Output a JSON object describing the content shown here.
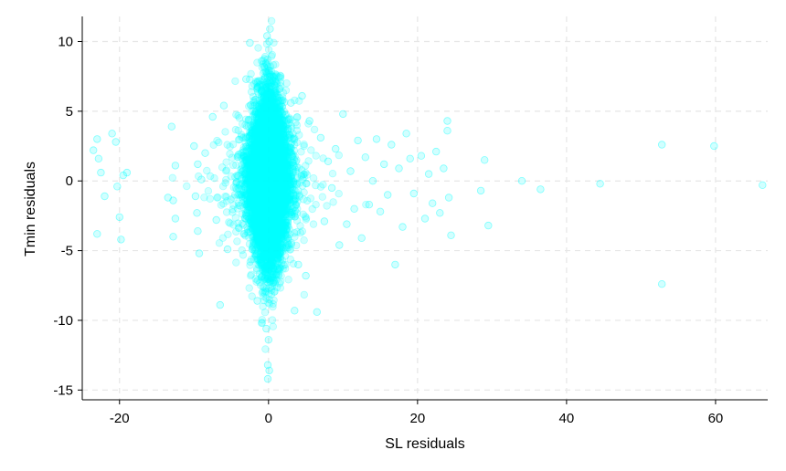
{
  "chart_data": {
    "type": "scatter",
    "title": "",
    "xlabel": "SL residuals",
    "ylabel": "Tmin residuals",
    "xlim": [
      -25,
      67
    ],
    "ylim": [
      -15.7,
      11.8
    ],
    "x_ticks": [
      -20,
      0,
      20,
      40,
      60
    ],
    "y_ticks": [
      10,
      5,
      0,
      -5,
      -10,
      -15
    ],
    "x_tick_labels": [
      "-20",
      "0",
      "20",
      "40",
      "60"
    ],
    "y_tick_labels": [
      "10",
      "5",
      "0",
      "-5",
      "-10",
      "-15"
    ],
    "grid": true,
    "marker_color": "#00ffff",
    "marker_opacity": 0.18,
    "core_cluster": {
      "description_fields_only": true,
      "count": 7000,
      "x_center": 0.0,
      "y_center": 0.0,
      "x_sd": 1.1,
      "y_sd": 3.0
    },
    "points": [
      {
        "x": -23.5,
        "y": 2.2
      },
      {
        "x": -23.0,
        "y": 3.0
      },
      {
        "x": -22.8,
        "y": 1.6
      },
      {
        "x": -22.5,
        "y": 0.6
      },
      {
        "x": -22.0,
        "y": -1.1
      },
      {
        "x": -23.0,
        "y": -3.8
      },
      {
        "x": -21.0,
        "y": 3.4
      },
      {
        "x": -20.5,
        "y": 2.8
      },
      {
        "x": -20.3,
        "y": -0.4
      },
      {
        "x": -20.0,
        "y": -2.6
      },
      {
        "x": -19.5,
        "y": 0.4
      },
      {
        "x": -19.8,
        "y": -4.2
      },
      {
        "x": -19.0,
        "y": 0.6
      },
      {
        "x": -13.0,
        "y": 3.9
      },
      {
        "x": -13.5,
        "y": -1.2
      },
      {
        "x": -12.5,
        "y": 1.1
      },
      {
        "x": -12.8,
        "y": -1.4
      },
      {
        "x": -12.5,
        "y": -2.7
      },
      {
        "x": -12.8,
        "y": -4.0
      },
      {
        "x": -10.0,
        "y": 2.5
      },
      {
        "x": -9.5,
        "y": 1.2
      },
      {
        "x": -9.8,
        "y": -1.1
      },
      {
        "x": -9.6,
        "y": -2.3
      },
      {
        "x": -9.5,
        "y": -3.6
      },
      {
        "x": -9.3,
        "y": -5.2
      },
      {
        "x": -9.0,
        "y": 0.1
      },
      {
        "x": -8.5,
        "y": 2.0
      },
      {
        "x": -7.5,
        "y": 4.6
      },
      {
        "x": -7.0,
        "y": -2.8
      },
      {
        "x": -6.5,
        "y": -8.9
      },
      {
        "x": -6.0,
        "y": 5.4
      },
      {
        "x": -5.5,
        "y": -4.9
      },
      {
        "x": -3.0,
        "y": 7.3
      },
      {
        "x": -2.5,
        "y": 9.9
      },
      {
        "x": -1.5,
        "y": -8.6
      },
      {
        "x": 0.2,
        "y": 10.9
      },
      {
        "x": -0.2,
        "y": 10.4
      },
      {
        "x": 0.1,
        "y": 10.0
      },
      {
        "x": -0.1,
        "y": -13.2
      },
      {
        "x": 0.1,
        "y": -13.6
      },
      {
        "x": -0.1,
        "y": -14.2
      },
      {
        "x": 0.0,
        "y": -11.4
      },
      {
        "x": -0.3,
        "y": -10.6
      },
      {
        "x": 3.0,
        "y": 5.6
      },
      {
        "x": 3.5,
        "y": -9.3
      },
      {
        "x": 4.0,
        "y": -6.0
      },
      {
        "x": 4.5,
        "y": 6.1
      },
      {
        "x": 5.0,
        "y": -6.8
      },
      {
        "x": 5.5,
        "y": 4.3
      },
      {
        "x": 6.5,
        "y": -9.4
      },
      {
        "x": 7.0,
        "y": 3.1
      },
      {
        "x": 7.5,
        "y": -2.9
      },
      {
        "x": 8.0,
        "y": 1.4
      },
      {
        "x": 8.5,
        "y": -0.5
      },
      {
        "x": 9.0,
        "y": 2.3
      },
      {
        "x": 9.5,
        "y": -4.6
      },
      {
        "x": 10.0,
        "y": 4.8
      },
      {
        "x": 10.5,
        "y": -3.1
      },
      {
        "x": 11.0,
        "y": 0.7
      },
      {
        "x": 11.5,
        "y": -2.0
      },
      {
        "x": 12.0,
        "y": 2.9
      },
      {
        "x": 12.5,
        "y": -4.1
      },
      {
        "x": 13.0,
        "y": 1.7
      },
      {
        "x": 13.5,
        "y": -1.7
      },
      {
        "x": 14.0,
        "y": 0.0
      },
      {
        "x": 14.5,
        "y": 3.0
      },
      {
        "x": 15.0,
        "y": -2.2
      },
      {
        "x": 15.5,
        "y": 1.2
      },
      {
        "x": 16.0,
        "y": -1.0
      },
      {
        "x": 16.5,
        "y": 2.6
      },
      {
        "x": 17.0,
        "y": -6.0
      },
      {
        "x": 17.5,
        "y": 0.9
      },
      {
        "x": 18.0,
        "y": -3.3
      },
      {
        "x": 18.5,
        "y": 3.4
      },
      {
        "x": 19.0,
        "y": 1.6
      },
      {
        "x": 19.5,
        "y": -0.9
      },
      {
        "x": 20.5,
        "y": 1.8
      },
      {
        "x": 21.0,
        "y": -2.7
      },
      {
        "x": 21.5,
        "y": 0.5
      },
      {
        "x": 22.0,
        "y": -1.6
      },
      {
        "x": 22.5,
        "y": 2.1
      },
      {
        "x": 23.0,
        "y": -2.3
      },
      {
        "x": 23.5,
        "y": 0.9
      },
      {
        "x": 24.0,
        "y": 4.3
      },
      {
        "x": 24.0,
        "y": 3.6
      },
      {
        "x": 24.2,
        "y": -1.2
      },
      {
        "x": 24.5,
        "y": -3.9
      },
      {
        "x": 28.5,
        "y": -0.7
      },
      {
        "x": 29.0,
        "y": 1.5
      },
      {
        "x": 29.5,
        "y": -3.2
      },
      {
        "x": 34.0,
        "y": 0.0
      },
      {
        "x": 36.5,
        "y": -0.6
      },
      {
        "x": 44.5,
        "y": -0.2
      },
      {
        "x": 52.8,
        "y": 2.6
      },
      {
        "x": 52.8,
        "y": -7.4
      },
      {
        "x": 59.8,
        "y": 2.5
      },
      {
        "x": 66.3,
        "y": -0.3
      }
    ]
  }
}
